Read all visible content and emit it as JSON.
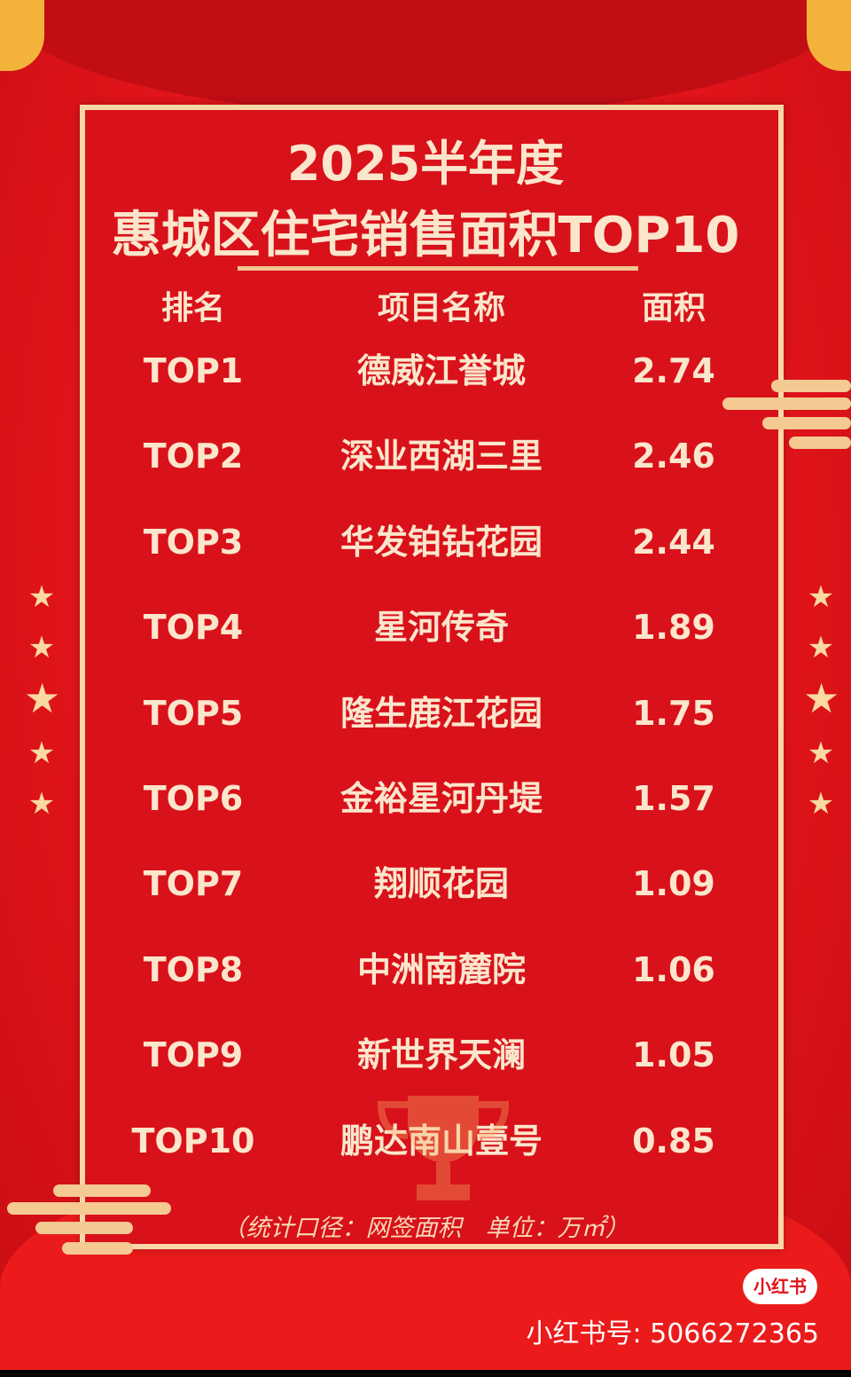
{
  "title": {
    "line1": "2025半年度",
    "line2": "惠城区住宅销售面积TOP10"
  },
  "table": {
    "headers": [
      "排名",
      "项目名称",
      "面积"
    ],
    "rows": [
      {
        "rank": "TOP1",
        "name": "德威江誉城",
        "area": "2.74"
      },
      {
        "rank": "TOP2",
        "name": "深业西湖三里",
        "area": "2.46"
      },
      {
        "rank": "TOP3",
        "name": "华发铂钻花园",
        "area": "2.44"
      },
      {
        "rank": "TOP4",
        "name": "星河传奇",
        "area": "1.89"
      },
      {
        "rank": "TOP5",
        "name": "隆生鹿江花园",
        "area": "1.75"
      },
      {
        "rank": "TOP6",
        "name": "金裕星河丹堤",
        "area": "1.57"
      },
      {
        "rank": "TOP7",
        "name": "翔顺花园",
        "area": "1.09"
      },
      {
        "rank": "TOP8",
        "name": "中洲南麓院",
        "area": "1.06"
      },
      {
        "rank": "TOP9",
        "name": "新世界天澜",
        "area": "1.05"
      },
      {
        "rank": "TOP10",
        "name": "鹏达南山壹号",
        "area": "0.85"
      }
    ]
  },
  "note": "（统计口径：网签面积　单位：万㎡）",
  "watermark": {
    "badge": "小红书",
    "account": "小红书号: 5066272365"
  },
  "colors": {
    "background": "#e0141a",
    "text": "#fbe6cc",
    "frame": "#f8d7a8"
  },
  "icons": [
    "star-icon",
    "cloud-ornament-icon",
    "lantern-icon",
    "trophy-icon"
  ]
}
